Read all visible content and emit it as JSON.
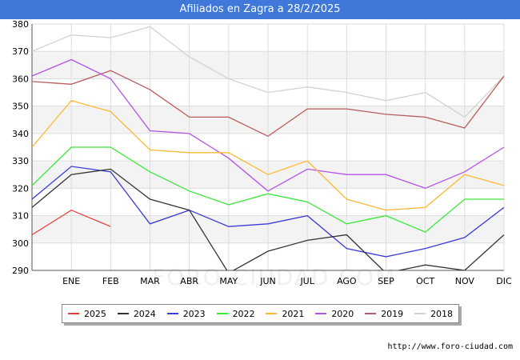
{
  "title": "Afiliados en Zagra a 28/2/2025",
  "source": "http://www.foro-ciudad.com",
  "watermark": "FORO-CIUDAD.COM",
  "chart_data": {
    "type": "line",
    "title": "Afiliados en Zagra a 28/2/2025",
    "categories": [
      "",
      "ENE",
      "FEB",
      "MAR",
      "ABR",
      "MAY",
      "JUN",
      "JUL",
      "AGO",
      "SEP",
      "OCT",
      "NOV",
      "DIC"
    ],
    "ylim": [
      290,
      380
    ],
    "yticks": [
      290,
      300,
      310,
      320,
      330,
      340,
      350,
      360,
      370,
      380
    ],
    "grid": true,
    "legend_position": "bottom",
    "series": [
      {
        "name": "2025",
        "color": "#e8413c",
        "values": [
          303,
          312,
          306,
          null,
          null,
          null,
          null,
          null,
          null,
          null,
          null,
          null,
          null
        ]
      },
      {
        "name": "2024",
        "color": "#333333",
        "values": [
          313,
          325,
          327,
          316,
          312,
          289,
          297,
          301,
          303,
          289,
          292,
          290,
          303
        ]
      },
      {
        "name": "2023",
        "color": "#3b3bd8",
        "values": [
          316,
          328,
          326,
          307,
          312,
          306,
          307,
          310,
          298,
          295,
          298,
          302,
          313
        ]
      },
      {
        "name": "2022",
        "color": "#3be83b",
        "values": [
          321,
          335,
          335,
          326,
          319,
          314,
          318,
          315,
          307,
          310,
          304,
          316,
          316
        ]
      },
      {
        "name": "2021",
        "color": "#ffb833",
        "values": [
          335,
          352,
          348,
          334,
          333,
          333,
          325,
          330,
          316,
          312,
          313,
          325,
          321
        ]
      },
      {
        "name": "2020",
        "color": "#b653e8",
        "values": [
          361,
          367,
          360,
          341,
          340,
          331,
          319,
          327,
          325,
          325,
          320,
          326,
          335
        ]
      },
      {
        "name": "2019",
        "color": "#b85c5c",
        "values": [
          359,
          358,
          363,
          356,
          346,
          346,
          339,
          349,
          349,
          347,
          346,
          342,
          361
        ]
      },
      {
        "name": "2018",
        "color": "#d2d2d2",
        "values": [
          370,
          376,
          375,
          379,
          368,
          360,
          355,
          357,
          355,
          352,
          355,
          346,
          361
        ]
      }
    ]
  }
}
